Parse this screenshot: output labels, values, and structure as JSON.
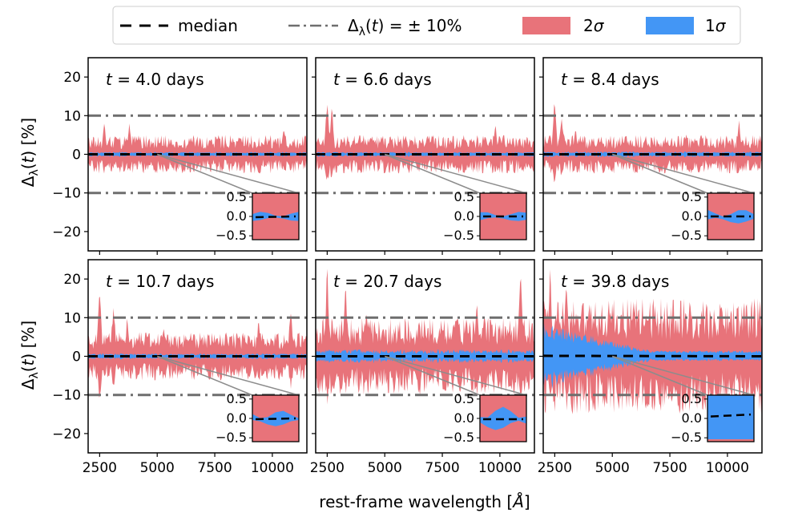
{
  "legend": {
    "median": "median",
    "threshold": "Δλ(t) = ± 10%",
    "band2": "2σ",
    "band1": "1σ"
  },
  "colors": {
    "band2": "#e8737a",
    "band1": "#4396f5",
    "median": "#000000",
    "threshold": "#6e6e6e",
    "connector": "#8c8c8c"
  },
  "axes": {
    "xlabel": "rest-frame wavelength [Å]",
    "ylabel": "Δλ(t) [%]"
  },
  "chart_data": {
    "type": "area",
    "xlabel": "rest-frame wavelength [Å]",
    "ylabel": "Δλ(t) [%]",
    "xlim": [
      2000,
      11500
    ],
    "ylim": [
      -25,
      25
    ],
    "xticks": [
      "2500",
      "5000",
      "7500",
      "10000"
    ],
    "yticks": [
      "20",
      "10",
      "0",
      "−10",
      "−20"
    ],
    "threshold_lines": [
      10,
      -10
    ],
    "inset": {
      "xlim": [
        9500,
        11500
      ],
      "ylim": [
        -0.6,
        0.6
      ],
      "yticks": [
        "0.5",
        "0.0",
        "−0.5"
      ],
      "anchor_x": 5000
    },
    "panels": [
      {
        "title": "t = 4.0 days",
        "band2_amplitude": 4,
        "band2_spikes": [
          [
            2700,
            9.5
          ],
          [
            3800,
            9.5
          ],
          [
            6400,
            5
          ],
          [
            8200,
            5
          ],
          [
            10500,
            9
          ]
        ],
        "band1_amplitude": 0.5,
        "median_offset": 0.0,
        "inset_median": [
          -0.02,
          0.0
        ],
        "inset_band2_full": true,
        "inset_band1_halfwidth": 0.12
      },
      {
        "title": "t = 6.6 days",
        "band2_amplitude": 4,
        "band2_spikes": [
          [
            2500,
            17
          ],
          [
            2700,
            15
          ],
          [
            3900,
            7
          ],
          [
            5900,
            6
          ],
          [
            9800,
            9
          ]
        ],
        "band1_amplitude": 0.5,
        "median_offset": 0.0,
        "inset_median": [
          0.0,
          0.0
        ],
        "inset_band2_full": true,
        "inset_band1_halfwidth": 0.12
      },
      {
        "title": "t = 8.4 days",
        "band2_amplitude": 4,
        "band2_spikes": [
          [
            2500,
            17
          ],
          [
            2800,
            12
          ],
          [
            3400,
            8
          ],
          [
            8200,
            6
          ],
          [
            10500,
            10
          ]
        ],
        "band1_amplitude": 0.6,
        "median_offset": 0.0,
        "inset_median": [
          0.0,
          0.0
        ],
        "inset_band2_full": true,
        "inset_band1_halfwidth": 0.18
      },
      {
        "title": "t = 10.7 days",
        "band2_amplitude": 5,
        "band2_spikes": [
          [
            2500,
            23
          ],
          [
            3100,
            17
          ],
          [
            3700,
            12
          ],
          [
            5300,
            9
          ],
          [
            9400,
            11
          ],
          [
            10800,
            15
          ]
        ],
        "band1_amplitude": 0.6,
        "median_offset": 0.0,
        "inset_median": [
          -0.02,
          0.0
        ],
        "inset_band2_full": true,
        "inset_band1_halfwidth": 0.2
      },
      {
        "title": "t = 20.7 days",
        "band2_amplitude": 8,
        "band2_spikes": [
          [
            2500,
            25
          ],
          [
            3300,
            20
          ],
          [
            4200,
            16
          ],
          [
            6500,
            10
          ],
          [
            9000,
            17
          ],
          [
            10900,
            25
          ]
        ],
        "band1_amplitude": 1.5,
        "median_offset": 0.0,
        "inset_median": [
          -0.02,
          -0.02
        ],
        "inset_band2_full": true,
        "inset_band1_halfwidth": 0.3
      },
      {
        "title": "t = 39.8 days",
        "band2_amplitude": 12,
        "band2_spikes": [
          [
            2300,
            25
          ],
          [
            3000,
            25
          ],
          [
            4000,
            18
          ],
          [
            5000,
            14
          ],
          [
            8400,
            15
          ]
        ],
        "band1_amplitude": 7,
        "median_offset": 0.4,
        "inset_median": [
          0.05,
          0.1
        ],
        "inset_band2_full": true,
        "inset_band1_halfwidth": 0.7
      }
    ]
  }
}
